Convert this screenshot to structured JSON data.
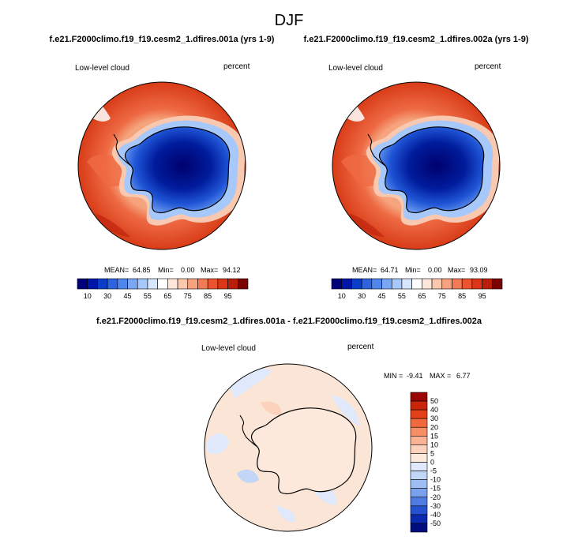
{
  "figure": {
    "title": "DJF",
    "colors": {
      "ocean_high": "#d33d17",
      "ocean_low": "#f4a178",
      "land_low": "#001a8c",
      "diff_bg": "#fbe5d6",
      "coast": "#000000"
    }
  },
  "chart_data": [
    {
      "type": "heatmap",
      "projection": "south-polar-stereographic",
      "title": "f.e21.F2000climo.f19_f19.cesm2_1.dfires.001a (yrs 1-9)",
      "left_label": "Low-level cloud",
      "right_label": "percent",
      "stats": {
        "mean_label": "MEAN=",
        "mean": "64.85",
        "min_label": "Min=",
        "min": "0.00",
        "max_label": "Max=",
        "max": "94.12"
      },
      "colorbar": {
        "orientation": "horizontal",
        "levels": [
          5,
          10,
          20,
          30,
          40,
          45,
          50,
          55,
          60,
          65,
          70,
          75,
          80,
          85,
          90,
          95
        ],
        "tick_labels": [
          "10",
          "30",
          "45",
          "55",
          "65",
          "75",
          "85",
          "95"
        ],
        "colors": [
          "#00007a",
          "#0016a8",
          "#0b3ec8",
          "#2d63e0",
          "#4f86ee",
          "#7aa7f4",
          "#a6c8fa",
          "#d6e6fd",
          "#ffffff",
          "#fde6da",
          "#fbc8ad",
          "#f8a17f",
          "#f47a55",
          "#ee5330",
          "#dd3516",
          "#ba1e0a",
          "#7a0404"
        ]
      }
    },
    {
      "type": "heatmap",
      "projection": "south-polar-stereographic",
      "title": "f.e21.F2000climo.f19_f19.cesm2_1.dfires.002a (yrs 1-9)",
      "left_label": "Low-level cloud",
      "right_label": "percent",
      "stats": {
        "mean_label": "MEAN=",
        "mean": "64.71",
        "min_label": "Min=",
        "min": "0.00",
        "max_label": "Max=",
        "max": "93.09"
      },
      "colorbar": {
        "orientation": "horizontal",
        "levels": [
          5,
          10,
          20,
          30,
          40,
          45,
          50,
          55,
          60,
          65,
          70,
          75,
          80,
          85,
          90,
          95
        ],
        "tick_labels": [
          "10",
          "30",
          "45",
          "55",
          "65",
          "75",
          "85",
          "95"
        ],
        "colors": [
          "#00007a",
          "#0016a8",
          "#0b3ec8",
          "#2d63e0",
          "#4f86ee",
          "#7aa7f4",
          "#a6c8fa",
          "#d6e6fd",
          "#ffffff",
          "#fde6da",
          "#fbc8ad",
          "#f8a17f",
          "#f47a55",
          "#ee5330",
          "#dd3516",
          "#ba1e0a",
          "#7a0404"
        ]
      }
    },
    {
      "type": "heatmap",
      "projection": "south-polar-stereographic",
      "title": "f.e21.F2000climo.f19_f19.cesm2_1.dfires.001a - f.e21.F2000climo.f19_f19.cesm2_1.dfires.002a",
      "left_label": "Low-level cloud",
      "right_label": "percent",
      "stats": {
        "min_label": "MIN =",
        "min": "-9.41",
        "max_label": "MAX =",
        "max": "6.77"
      },
      "colorbar": {
        "orientation": "vertical",
        "levels": [
          50,
          40,
          30,
          20,
          15,
          10,
          5,
          0,
          -5,
          -10,
          -15,
          -20,
          -30,
          -40,
          -50
        ],
        "tick_labels": [
          "50",
          "40",
          "30",
          "20",
          "15",
          "10",
          "5",
          "0",
          "-5",
          "-10",
          "-15",
          "-20",
          "-30",
          "-40",
          "-50"
        ],
        "colors": [
          "#9a0606",
          "#c9250b",
          "#e4411b",
          "#f16a3f",
          "#f68f66",
          "#f9b394",
          "#fbd3bd",
          "#fde9dc",
          "#dfe9fb",
          "#c2d6f7",
          "#9fbdf2",
          "#7aa1ec",
          "#4f7be2",
          "#2451d0",
          "#0a2bb0",
          "#000d7e"
        ]
      }
    }
  ]
}
